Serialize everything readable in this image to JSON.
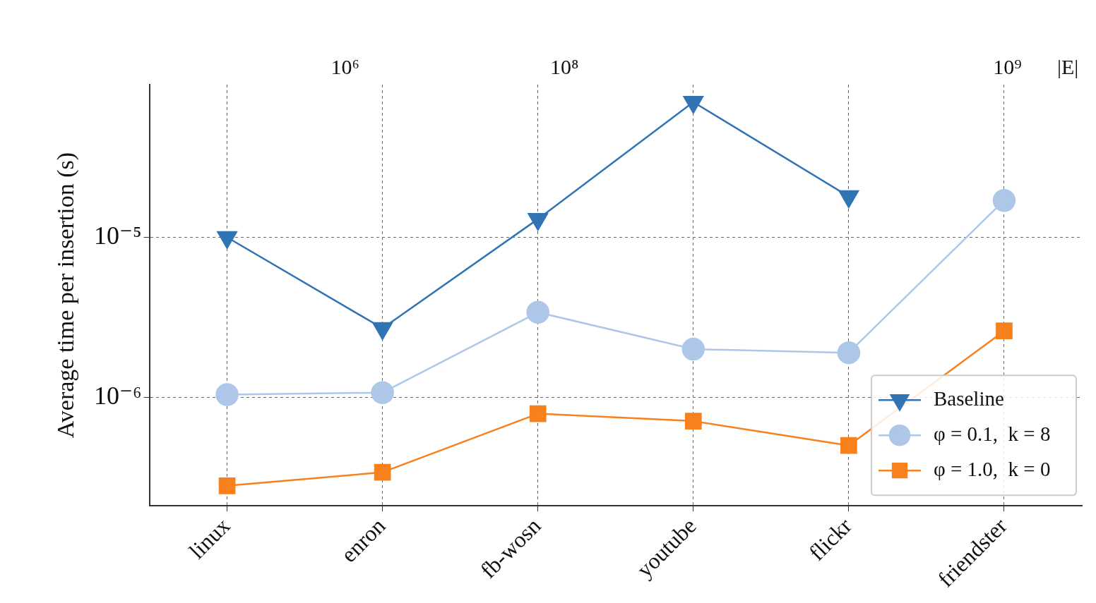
{
  "chart_data": {
    "type": "line",
    "ylabel": "Average time per insertion (s)",
    "categories": [
      "linux",
      "enron",
      "fb-wosn",
      "youtube",
      "flickr",
      "friendster"
    ],
    "series": [
      {
        "name": "Baseline",
        "color": "#3174b4",
        "marker": "triangle",
        "values": [
          1e-05,
          2.7e-06,
          1.3e-05,
          7e-05,
          1.8e-05,
          null
        ]
      },
      {
        "name": "φ = 0.1,  k = 8",
        "color": "#aec7e8",
        "marker": "circle",
        "values": [
          1.04e-06,
          1.07e-06,
          3.4e-06,
          2e-06,
          1.9e-06,
          1.7e-05
        ]
      },
      {
        "name": "φ = 1.0,  k = 0",
        "color": "#f7811d",
        "marker": "square",
        "values": [
          2.8e-07,
          3.4e-07,
          7.9e-07,
          7.1e-07,
          5e-07,
          2.6e-06
        ]
      }
    ],
    "log": "y",
    "ylim": [
      2.1e-07,
      9e-05
    ],
    "yticks": [
      {
        "value": 1e-06,
        "label": "10⁻⁶"
      },
      {
        "value": 1e-05,
        "label": "10⁻⁵"
      }
    ],
    "grid": true,
    "legend": "bottom right",
    "annotations": [
      "10⁶",
      "10⁸",
      "10⁹",
      "|E|"
    ]
  }
}
